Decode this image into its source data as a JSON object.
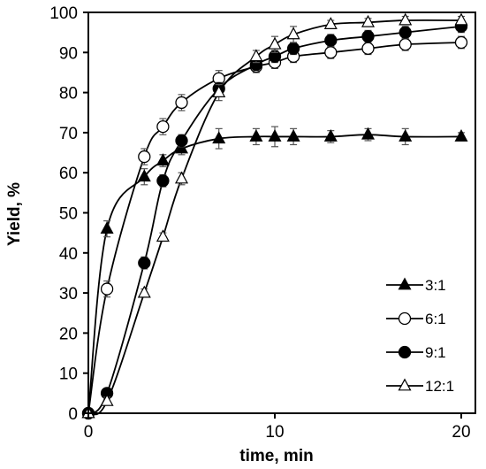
{
  "chart_data": {
    "type": "line",
    "xlabel": "time, min",
    "ylabel": "Yield, %",
    "xlim": [
      0,
      20
    ],
    "ylim": [
      0,
      100
    ],
    "x_ticks": [
      0,
      10,
      20
    ],
    "y_ticks": [
      0,
      10,
      20,
      30,
      40,
      50,
      60,
      70,
      80,
      90,
      100
    ],
    "legend_position": "bottom-right",
    "series": [
      {
        "name": "3:1",
        "marker": "triangle-filled",
        "x": [
          0,
          1,
          3,
          4,
          5,
          7,
          9,
          10,
          11,
          13,
          15,
          17,
          20
        ],
        "y": [
          0,
          46,
          59,
          63,
          66,
          68.5,
          69,
          69,
          69,
          69,
          69.5,
          69,
          69
        ],
        "err": [
          0,
          2,
          2,
          1.5,
          1.5,
          2.5,
          2,
          2.5,
          2,
          1.5,
          1.5,
          2,
          1
        ]
      },
      {
        "name": "6:1",
        "marker": "circle-open",
        "x": [
          0,
          1,
          3,
          4,
          5,
          7,
          9,
          10,
          11,
          13,
          15,
          17,
          20
        ],
        "y": [
          0,
          31,
          64,
          71.5,
          77.5,
          83.5,
          86.5,
          87.5,
          89,
          90,
          91,
          92,
          92.5
        ],
        "err": [
          0,
          2,
          2,
          2,
          2,
          2,
          1.5,
          1.5,
          1.5,
          1.5,
          1.5,
          1.5,
          1.5
        ]
      },
      {
        "name": "9:1",
        "marker": "circle-filled",
        "x": [
          0,
          1,
          3,
          4,
          5,
          7,
          9,
          10,
          11,
          13,
          15,
          17,
          20
        ],
        "y": [
          0,
          5,
          37.5,
          58,
          68,
          81,
          87,
          89,
          91,
          93,
          94,
          95,
          96.5
        ],
        "err": [
          0,
          1,
          1.5,
          1.5,
          1.5,
          1.5,
          1.5,
          1.5,
          1.5,
          1.5,
          1.5,
          1.5,
          1.5
        ]
      },
      {
        "name": "12:1",
        "marker": "triangle-open",
        "x": [
          0,
          1,
          3,
          4,
          5,
          7,
          9,
          10,
          11,
          13,
          15,
          17,
          20
        ],
        "y": [
          0,
          3,
          30,
          44,
          58.5,
          80,
          89,
          92,
          94.5,
          97,
          97.5,
          98,
          98
        ],
        "err": [
          0,
          1,
          1,
          1,
          1.5,
          2,
          1.5,
          2,
          2,
          1,
          1,
          1,
          1
        ]
      }
    ]
  }
}
